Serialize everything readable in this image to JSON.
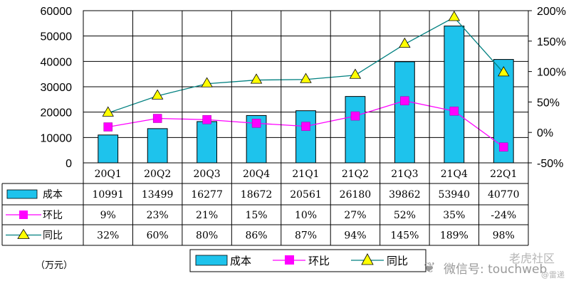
{
  "chart_data": {
    "type": "bar",
    "categories": [
      "20Q1",
      "20Q2",
      "20Q3",
      "20Q4",
      "21Q1",
      "21Q2",
      "21Q3",
      "21Q4",
      "22Q1"
    ],
    "series": [
      {
        "name": "成本",
        "kind": "bar",
        "axis": "left",
        "color": "#1ec3ec",
        "values": [
          10991,
          13499,
          16277,
          18672,
          20561,
          26180,
          39862,
          53940,
          40770
        ],
        "labels": [
          "10991",
          "13499",
          "16277",
          "18672",
          "20561",
          "26180",
          "39862",
          "53940",
          "40770"
        ]
      },
      {
        "name": "环比",
        "kind": "line",
        "axis": "right",
        "marker": "square",
        "color": "#ff00ff",
        "values": [
          9,
          23,
          21,
          15,
          10,
          27,
          52,
          35,
          -24
        ],
        "labels": [
          "9%",
          "23%",
          "21%",
          "15%",
          "10%",
          "27%",
          "52%",
          "35%",
          "-24%"
        ]
      },
      {
        "name": "同比",
        "kind": "line",
        "axis": "right",
        "marker": "triangle",
        "color": "#008080",
        "marker_color": "#ffff00",
        "values": [
          32,
          60,
          80,
          86,
          87,
          94,
          145,
          189,
          98
        ],
        "labels": [
          "32%",
          "60%",
          "80%",
          "86%",
          "87%",
          "94%",
          "145%",
          "189%",
          "98%"
        ]
      }
    ],
    "ylim": [
      0,
      60000
    ],
    "yticks": [
      "60000",
      "50000",
      "40000",
      "30000",
      "20000",
      "10000",
      "0"
    ],
    "y2lim": [
      -50,
      200
    ],
    "y2ticks": [
      "200%",
      "150%",
      "100%",
      "50%",
      "0%",
      "-50%"
    ],
    "legend_position": "bottom",
    "unit_label": "（万元）",
    "grid": true
  },
  "watermark": {
    "icon": "wechat-icon",
    "text": "微信号: touchweb",
    "logo": "老虎社区",
    "logo_sub": "@雷递"
  }
}
